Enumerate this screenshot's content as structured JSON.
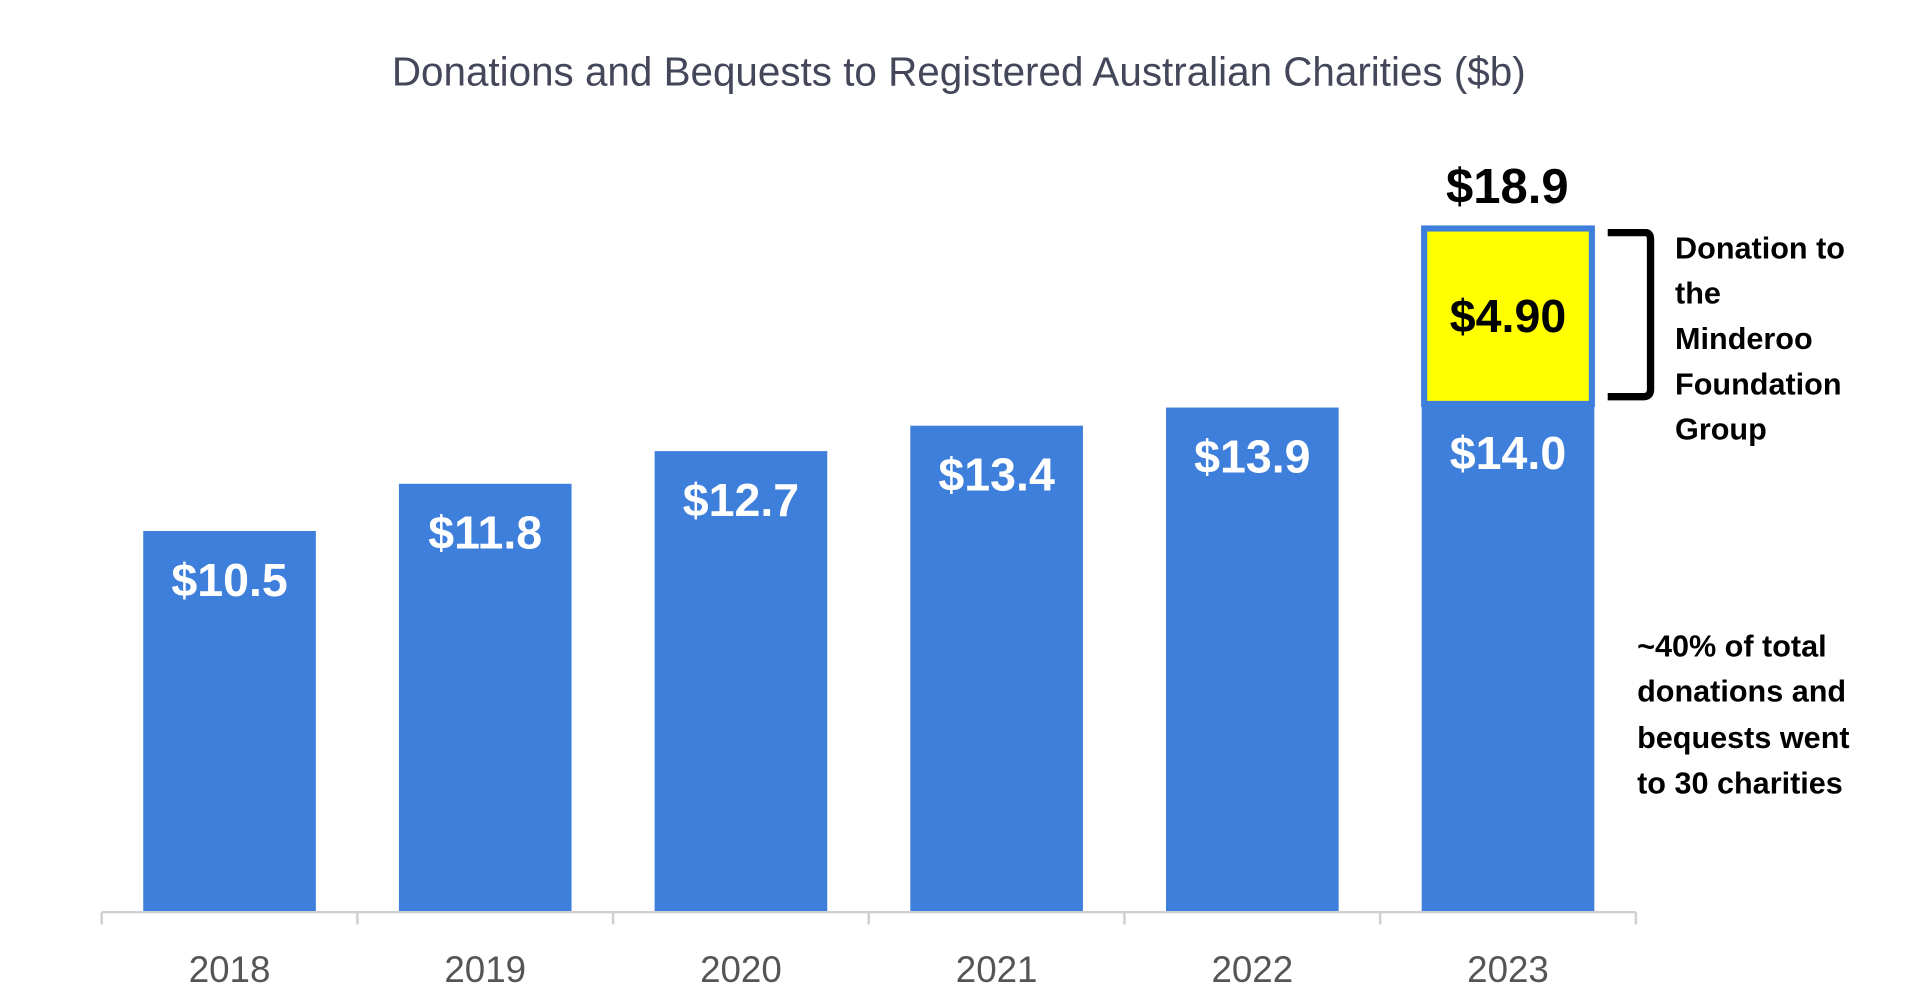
{
  "chart_data": {
    "type": "bar",
    "title": "Donations and Bequests to Registered Australian Charities ($b)",
    "xlabel": "",
    "ylabel": "",
    "ylim": [
      0,
      20
    ],
    "grid": false,
    "categories": [
      "2018",
      "2019",
      "2020",
      "2021",
      "2022",
      "2023"
    ],
    "values": [
      10.5,
      11.8,
      12.7,
      13.4,
      13.9,
      14.0
    ],
    "value_labels": [
      "$10.5",
      "$11.8",
      "$12.7",
      "$13.4",
      "$13.9",
      "$14.0"
    ],
    "stacked_extra": {
      "category": "2023",
      "value": 4.9,
      "label": "$4.90",
      "total": 18.9,
      "total_label": "$18.9"
    },
    "annotations": {
      "bracket_note": [
        "Donation to",
        "the",
        "Minderoo",
        "Foundation",
        "Group"
      ],
      "side_note": [
        "~40% of total",
        "donations and",
        "bequests went",
        "to 30 charities"
      ]
    },
    "colors": {
      "bar": "#3e7fdb",
      "highlight": "#ffff00",
      "axis": "#d0d0d0"
    }
  }
}
